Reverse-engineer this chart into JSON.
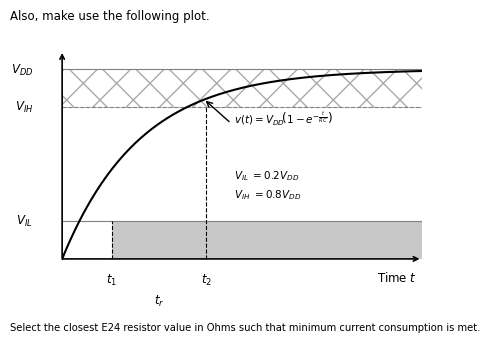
{
  "title_text": "Also, make use the following plot.",
  "footer_text": "Select the closest E24 resistor value in Ohms such that minimum current consumption is met.",
  "VDD": 1.0,
  "VIH": 0.8,
  "VIL": 0.2,
  "t1": 0.18,
  "t2": 0.52,
  "tau": 0.28,
  "x_max": 1.3,
  "hatch_color": "#aaaaaa",
  "hatch_pattern": "x",
  "fill_low_color": "#c8c8c8",
  "curve_color": "#000000",
  "background_color": "#ffffff"
}
